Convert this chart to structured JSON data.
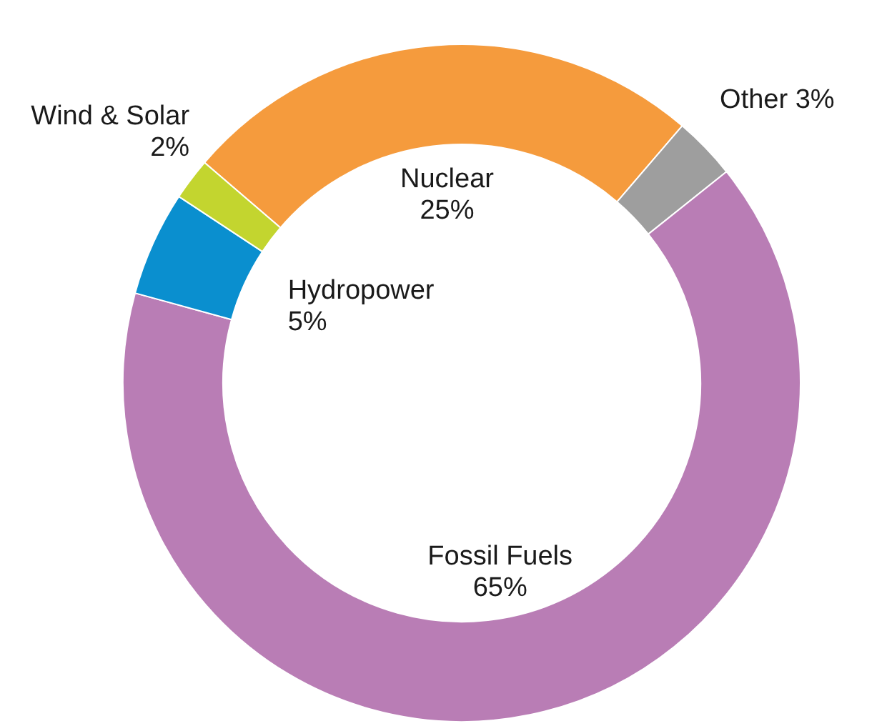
{
  "chart_data": {
    "type": "donut",
    "categories": [
      "Nuclear",
      "Other",
      "Fossil Fuels",
      "Hydropower",
      "Wind & Solar"
    ],
    "values": [
      25,
      3,
      65,
      5,
      2
    ],
    "value_labels": [
      "25%",
      "3%",
      "65%",
      "5%",
      "2%"
    ],
    "colors": [
      "#f59b3d",
      "#9e9e9e",
      "#b97db5",
      "#0a8fcf",
      "#c3d52f"
    ]
  }
}
